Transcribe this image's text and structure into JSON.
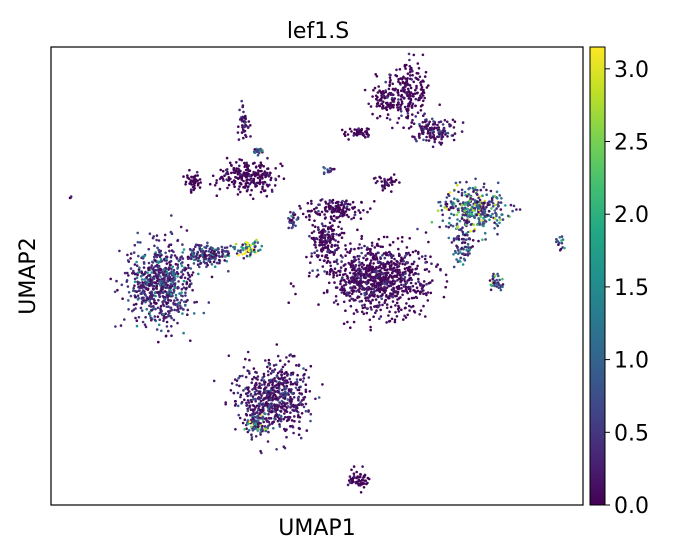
{
  "chart_data": {
    "type": "scatter",
    "title": "lef1.S",
    "xlabel": "UMAP1",
    "ylabel": "UMAP2",
    "x_ticks_shown": false,
    "y_ticks_shown": false,
    "grid": false,
    "colormap": "viridis",
    "colorbar": {
      "min": 0.0,
      "max": 3.15,
      "ticks": [
        0.0,
        0.5,
        1.0,
        1.5,
        2.0,
        2.5,
        3.0
      ],
      "tick_labels": [
        "0.0",
        "0.5",
        "1.0",
        "1.5",
        "2.0",
        "2.5",
        "3.0"
      ],
      "placement": "right"
    },
    "colors": {
      "low": "#440154",
      "mid": "#21918c",
      "high": "#fde725"
    },
    "clusters": [
      {
        "cx": 7.2,
        "cy": 6.3,
        "rx": 0.9,
        "ry": 1.1,
        "n": 230,
        "expr": 0.08
      },
      {
        "cx": 6.2,
        "cy": 6.0,
        "rx": 0.45,
        "ry": 0.5,
        "n": 60,
        "expr": 0.05
      },
      {
        "cx": 8.3,
        "cy": 4.9,
        "rx": 0.75,
        "ry": 0.4,
        "n": 140,
        "expr": 0.25
      },
      {
        "cx": 5.2,
        "cy": 4.8,
        "rx": 0.5,
        "ry": 0.2,
        "n": 50,
        "expr": 0.04
      },
      {
        "cx": 0.5,
        "cy": 5.2,
        "rx": 0.2,
        "ry": 0.6,
        "n": 45,
        "expr": 0.2
      },
      {
        "cx": 1.1,
        "cy": 4.1,
        "rx": 0.25,
        "ry": 0.15,
        "n": 20,
        "expr": 1.6
      },
      {
        "cx": -1.6,
        "cy": 3.0,
        "rx": 0.3,
        "ry": 0.35,
        "n": 50,
        "expr": 0.03
      },
      {
        "cx": 0.7,
        "cy": 3.2,
        "rx": 1.2,
        "ry": 0.55,
        "n": 230,
        "expr": 0.05
      },
      {
        "cx": 4.0,
        "cy": 3.4,
        "rx": 0.2,
        "ry": 0.15,
        "n": 15,
        "expr": 0.8
      },
      {
        "cx": 6.4,
        "cy": 3.0,
        "rx": 0.4,
        "ry": 0.25,
        "n": 40,
        "expr": 0.04
      },
      {
        "cx": 10.0,
        "cy": 2.0,
        "rx": 1.2,
        "ry": 0.7,
        "n": 330,
        "expr": 1.3
      },
      {
        "cx": 9.5,
        "cy": 0.7,
        "rx": 0.5,
        "ry": 0.6,
        "n": 80,
        "expr": 0.6
      },
      {
        "cx": 10.9,
        "cy": -0.7,
        "rx": 0.3,
        "ry": 0.3,
        "n": 35,
        "expr": 1.1
      },
      {
        "cx": 2.5,
        "cy": 1.6,
        "rx": 0.2,
        "ry": 0.4,
        "n": 25,
        "expr": 0.9
      },
      {
        "cx": 4.3,
        "cy": 2.0,
        "rx": 1.2,
        "ry": 0.35,
        "n": 140,
        "expr": 0.1
      },
      {
        "cx": 3.9,
        "cy": 0.8,
        "rx": 0.6,
        "ry": 0.9,
        "n": 180,
        "expr": 0.08
      },
      {
        "cx": 6.1,
        "cy": -0.6,
        "rx": 1.9,
        "ry": 1.1,
        "n": 900,
        "expr": 0.12
      },
      {
        "cx": -3.0,
        "cy": -0.8,
        "rx": 1.2,
        "ry": 1.4,
        "n": 650,
        "expr": 0.55
      },
      {
        "cx": -1.0,
        "cy": 0.3,
        "rx": 1.0,
        "ry": 0.35,
        "n": 160,
        "expr": 0.7
      },
      {
        "cx": 0.7,
        "cy": 0.5,
        "rx": 0.45,
        "ry": 0.25,
        "n": 60,
        "expr": 2.3
      },
      {
        "cx": 1.7,
        "cy": -5.0,
        "rx": 1.3,
        "ry": 1.2,
        "n": 600,
        "expr": 0.25
      },
      {
        "cx": 1.0,
        "cy": -6.0,
        "rx": 0.4,
        "ry": 0.4,
        "n": 80,
        "expr": 1.2
      },
      {
        "cx": 5.2,
        "cy": -8.1,
        "rx": 0.4,
        "ry": 0.3,
        "n": 60,
        "expr": 0.05
      },
      {
        "cx": 13.5,
        "cy": 0.8,
        "rx": 0.2,
        "ry": 0.3,
        "n": 15,
        "expr": 0.9
      },
      {
        "cx": -6.7,
        "cy": 2.4,
        "rx": 0.06,
        "ry": 0.06,
        "n": 3,
        "expr": 0.0
      }
    ],
    "xlim": [
      -7.5,
      14.5
    ],
    "ylim": [
      -9.0,
      8.0
    ]
  }
}
